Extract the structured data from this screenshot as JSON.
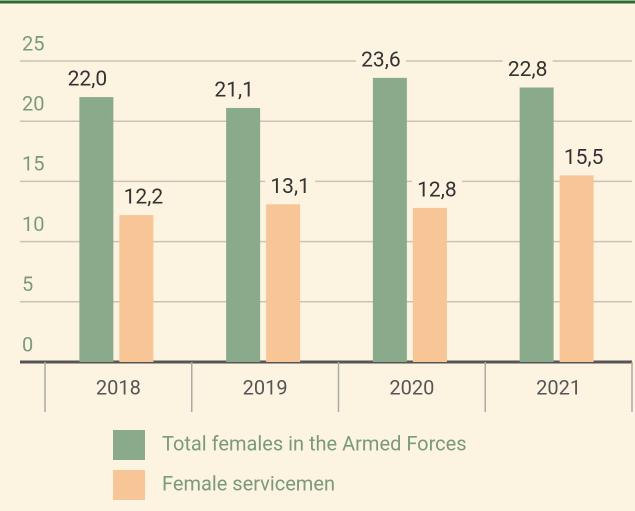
{
  "chart_data": {
    "type": "bar",
    "categories": [
      "2018",
      "2019",
      "2020",
      "2021"
    ],
    "series": [
      {
        "name": "Total females in the Armed Forces",
        "color": "#8aaa8c",
        "values": [
          22.0,
          21.1,
          23.6,
          22.8
        ],
        "value_labels": [
          "22,0",
          "21,1",
          "23,6",
          "22,8"
        ]
      },
      {
        "name": "Female servicemen",
        "color": "#f8c597",
        "values": [
          12.2,
          13.1,
          12.8,
          15.5
        ],
        "value_labels": [
          "12,2",
          "13,1",
          "12,8",
          "15,5"
        ]
      }
    ],
    "ylim": [
      0,
      25
    ],
    "yticks": [
      0,
      5,
      10,
      15,
      20,
      25
    ],
    "grid": true
  }
}
